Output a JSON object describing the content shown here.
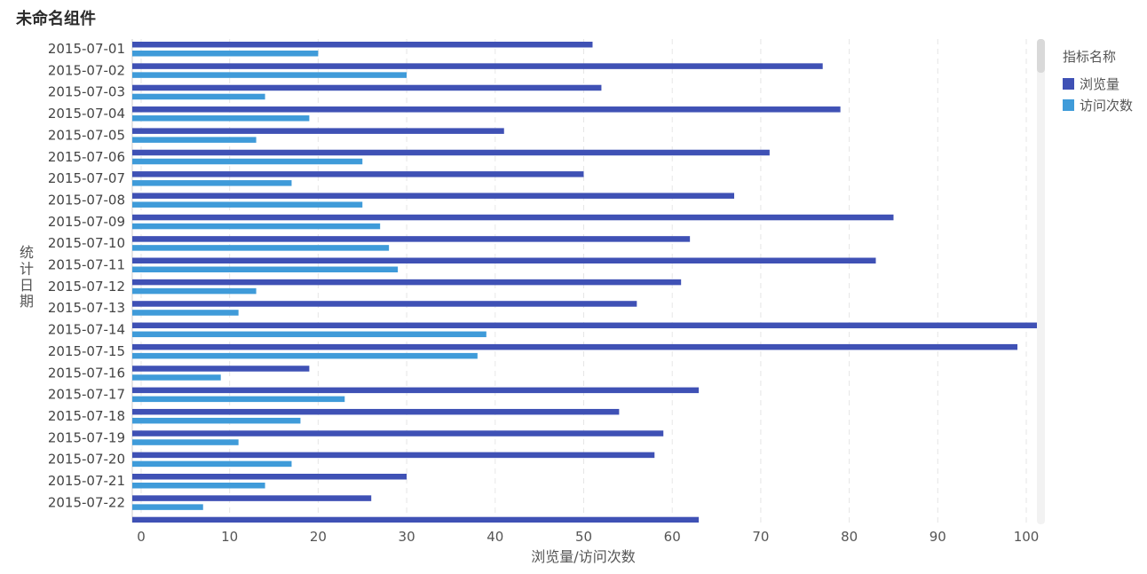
{
  "widget": {
    "title": "未命名组件"
  },
  "legend": {
    "title": "指标名称",
    "placement": "right"
  },
  "colors": {
    "browse": "#3f51b5",
    "visits": "#3f9bd9",
    "grid": "#e6e6e6",
    "axis": "#cccccc"
  },
  "chart_data": {
    "type": "bar",
    "orientation": "horizontal",
    "categories": [
      "2015-07-01",
      "2015-07-02",
      "2015-07-03",
      "2015-07-04",
      "2015-07-05",
      "2015-07-06",
      "2015-07-07",
      "2015-07-08",
      "2015-07-09",
      "2015-07-10",
      "2015-07-11",
      "2015-07-12",
      "2015-07-13",
      "2015-07-14",
      "2015-07-15",
      "2015-07-16",
      "2015-07-17",
      "2015-07-18",
      "2015-07-19",
      "2015-07-20",
      "2015-07-21",
      "2015-07-22"
    ],
    "series": [
      {
        "name": "浏览量",
        "values": [
          51,
          77,
          52,
          79,
          41,
          71,
          50,
          67,
          85,
          62,
          83,
          61,
          56,
          102,
          99,
          19,
          63,
          54,
          59,
          58,
          30,
          26
        ]
      },
      {
        "name": "访问次数",
        "values": [
          20,
          30,
          14,
          19,
          13,
          25,
          17,
          25,
          27,
          28,
          29,
          13,
          11,
          39,
          38,
          9,
          23,
          18,
          11,
          17,
          14,
          7
        ]
      }
    ],
    "partial_next_row": {
      "series": "浏览量",
      "value": 63
    },
    "xlabel": "浏览量/访问次数",
    "ylabel": "统计日期",
    "xlim": [
      -1,
      101
    ],
    "xticks": [
      0,
      10,
      20,
      30,
      40,
      50,
      60,
      70,
      80,
      90,
      100
    ],
    "grid": "vertical dashed"
  }
}
